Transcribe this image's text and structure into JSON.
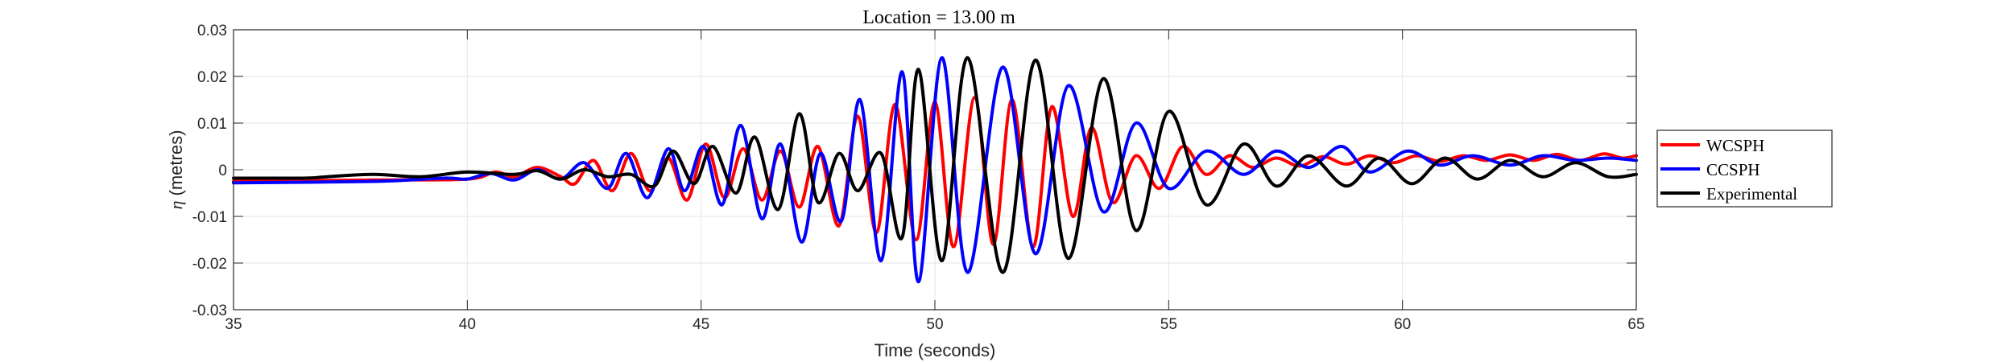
{
  "chart_data": {
    "type": "line",
    "title": "Location = 13.00 m",
    "xlabel": "Time (seconds)",
    "ylabel_symbol": "η",
    "ylabel_text": "(metres)",
    "xlim": [
      35,
      65
    ],
    "ylim": [
      -0.03,
      0.03
    ],
    "x_ticks": [
      35,
      40,
      45,
      50,
      55,
      60,
      65
    ],
    "x_tick_labels": [
      "35",
      "40",
      "45",
      "50",
      "55",
      "60",
      "65"
    ],
    "y_ticks": [
      -0.03,
      -0.02,
      -0.01,
      0,
      0.01,
      0.02,
      0.03
    ],
    "y_tick_labels": [
      "-0.03",
      "-0.02",
      "-0.01",
      "0",
      "0.01",
      "0.02",
      "0.03"
    ],
    "grid": true,
    "legend_position": "right",
    "series": [
      {
        "name": "WCSPH",
        "color": "#ff0000",
        "x": [
          35.0,
          38.0,
          40.0,
          40.6,
          41.0,
          41.5,
          42.0,
          42.3,
          42.7,
          43.1,
          43.5,
          43.9,
          44.3,
          44.7,
          45.1,
          45.5,
          45.9,
          46.3,
          46.7,
          47.1,
          47.5,
          47.95,
          48.35,
          48.75,
          49.15,
          49.6,
          50.0,
          50.4,
          50.85,
          51.25,
          51.65,
          52.1,
          52.5,
          52.95,
          53.35,
          53.8,
          54.3,
          54.8,
          55.3,
          55.8,
          56.3,
          56.8,
          57.3,
          57.8,
          58.3,
          58.8,
          59.3,
          59.8,
          60.3,
          60.8,
          61.3,
          61.8,
          62.3,
          62.8,
          63.3,
          63.8,
          64.3,
          64.7,
          65.0
        ],
        "y": [
          -0.0025,
          -0.0022,
          -0.002,
          -0.0005,
          -0.0015,
          0.0005,
          -0.0015,
          -0.003,
          0.002,
          -0.0045,
          0.0035,
          -0.0045,
          0.0025,
          -0.0065,
          0.0055,
          -0.006,
          0.0045,
          -0.0065,
          0.004,
          -0.008,
          0.005,
          -0.012,
          0.0115,
          -0.0135,
          0.014,
          -0.015,
          0.0145,
          -0.0165,
          0.0155,
          -0.016,
          0.015,
          -0.0165,
          0.0135,
          -0.01,
          0.009,
          -0.007,
          0.003,
          -0.004,
          0.005,
          -0.001,
          0.003,
          0.0005,
          0.0025,
          0.0008,
          0.0028,
          0.0012,
          0.003,
          0.0015,
          0.003,
          0.0018,
          0.003,
          0.002,
          0.0032,
          0.002,
          0.0033,
          0.002,
          0.0034,
          0.0025,
          0.003
        ]
      },
      {
        "name": "CCSPH",
        "color": "#0000ff",
        "x": [
          35.0,
          38.0,
          39.5,
          40.0,
          40.5,
          41.0,
          41.5,
          42.0,
          42.5,
          43.0,
          43.4,
          43.85,
          44.3,
          44.65,
          45.05,
          45.45,
          45.85,
          46.3,
          46.7,
          47.15,
          47.55,
          48.0,
          48.4,
          48.85,
          49.3,
          49.65,
          50.15,
          50.7,
          51.45,
          52.15,
          52.85,
          53.6,
          54.3,
          55.0,
          55.8,
          56.6,
          57.3,
          58.0,
          58.7,
          59.3,
          60.1,
          60.8,
          61.5,
          62.3,
          63.0,
          63.7,
          64.4,
          65.0
        ],
        "y": [
          -0.0028,
          -0.0025,
          -0.0018,
          -0.002,
          -0.0008,
          -0.0022,
          0.0,
          -0.002,
          0.0015,
          -0.004,
          0.0035,
          -0.006,
          0.0045,
          -0.0045,
          0.005,
          -0.0075,
          0.0095,
          -0.0105,
          0.0055,
          -0.0155,
          0.0035,
          -0.011,
          0.015,
          -0.0195,
          0.021,
          -0.024,
          0.024,
          -0.022,
          0.022,
          -0.018,
          0.018,
          -0.009,
          0.01,
          -0.004,
          0.004,
          -0.001,
          0.004,
          0.0005,
          0.005,
          -0.0005,
          0.004,
          0.001,
          0.003,
          0.001,
          0.003,
          0.002,
          0.0025,
          0.002
        ]
      },
      {
        "name": "Experimental",
        "color": "#000000",
        "x": [
          35.0,
          36.5,
          37.0,
          38.0,
          39.0,
          40.0,
          41.0,
          41.5,
          42.0,
          42.5,
          43.0,
          43.5,
          44.0,
          44.4,
          44.85,
          45.25,
          45.75,
          46.15,
          46.65,
          47.1,
          47.5,
          47.95,
          48.35,
          48.85,
          49.3,
          49.65,
          50.15,
          50.7,
          51.45,
          52.15,
          52.85,
          53.6,
          54.3,
          55.0,
          55.8,
          56.6,
          57.3,
          58.0,
          58.8,
          59.5,
          60.2,
          60.9,
          61.6,
          62.3,
          63.0,
          63.7,
          64.4,
          65.0
        ],
        "y": [
          -0.0018,
          -0.0018,
          -0.0015,
          -0.001,
          -0.0015,
          -0.0005,
          -0.001,
          -0.0002,
          -0.002,
          0.0,
          -0.0015,
          -0.001,
          -0.0035,
          0.004,
          -0.003,
          0.005,
          -0.005,
          0.007,
          -0.0085,
          0.012,
          -0.007,
          0.0035,
          -0.0045,
          0.0035,
          -0.0145,
          0.0215,
          -0.0195,
          0.024,
          -0.022,
          0.0235,
          -0.019,
          0.0195,
          -0.013,
          0.0125,
          -0.0075,
          0.0055,
          -0.0035,
          0.003,
          -0.0035,
          0.0025,
          -0.003,
          0.0025,
          -0.002,
          0.002,
          -0.0015,
          0.0015,
          -0.0015,
          -0.001
        ]
      }
    ]
  }
}
